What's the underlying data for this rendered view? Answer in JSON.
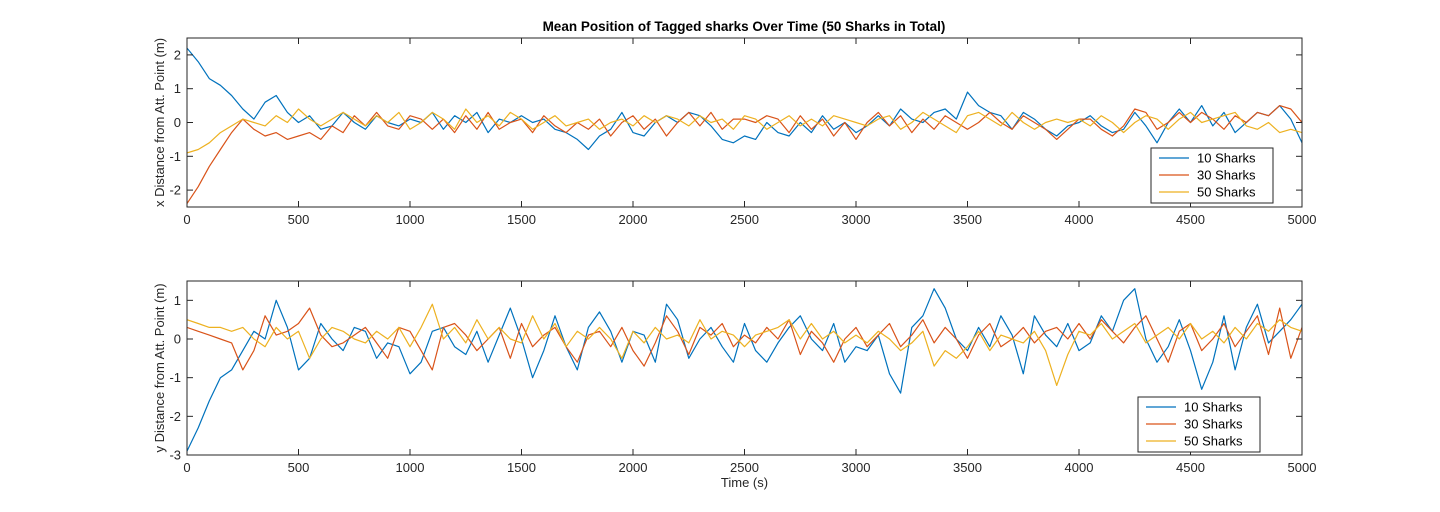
{
  "chart_data": [
    {
      "type": "line",
      "title": "Mean Position of Tagged sharks Over Time (50 Sharks in Total)",
      "xlabel": "",
      "ylabel": "x Distance from Att. Point (m)",
      "xlim": [
        0,
        5000
      ],
      "ylim": [
        -2.5,
        2.5
      ],
      "xticks": [
        0,
        500,
        1000,
        1500,
        2000,
        2500,
        3000,
        3500,
        4000,
        4500,
        5000
      ],
      "yticks": [
        -2,
        -1,
        0,
        1,
        2
      ],
      "legend_position": "lower-right",
      "grid": false,
      "x": [
        0,
        50,
        100,
        150,
        200,
        250,
        300,
        350,
        400,
        450,
        500,
        550,
        600,
        650,
        700,
        750,
        800,
        850,
        900,
        950,
        1000,
        1050,
        1100,
        1150,
        1200,
        1250,
        1300,
        1350,
        1400,
        1450,
        1500,
        1550,
        1600,
        1650,
        1700,
        1750,
        1800,
        1850,
        1900,
        1950,
        2000,
        2050,
        2100,
        2150,
        2200,
        2250,
        2300,
        2350,
        2400,
        2450,
        2500,
        2550,
        2600,
        2650,
        2700,
        2750,
        2800,
        2850,
        2900,
        2950,
        3000,
        3050,
        3100,
        3150,
        3200,
        3250,
        3300,
        3350,
        3400,
        3450,
        3500,
        3550,
        3600,
        3650,
        3700,
        3750,
        3800,
        3850,
        3900,
        3950,
        4000,
        4050,
        4100,
        4150,
        4200,
        4250,
        4300,
        4350,
        4400,
        4450,
        4500,
        4550,
        4600,
        4650,
        4700,
        4750,
        4800,
        4850,
        4900,
        4950,
        5000
      ],
      "series": [
        {
          "name": "10 Sharks",
          "color": "#0072BD",
          "values": [
            2.2,
            1.8,
            1.3,
            1.1,
            0.8,
            0.4,
            0.1,
            0.6,
            0.8,
            0.3,
            0.0,
            0.2,
            -0.2,
            -0.1,
            0.3,
            0.0,
            -0.2,
            0.2,
            0.0,
            -0.1,
            0.1,
            0.0,
            0.3,
            -0.2,
            0.2,
            0.0,
            0.3,
            -0.3,
            0.1,
            0.0,
            0.2,
            0.0,
            0.1,
            -0.2,
            -0.3,
            -0.5,
            -0.8,
            -0.4,
            -0.2,
            0.3,
            -0.3,
            -0.4,
            0.0,
            0.2,
            0.0,
            0.3,
            0.2,
            -0.1,
            -0.5,
            -0.6,
            -0.4,
            -0.5,
            0.0,
            -0.3,
            -0.4,
            0.0,
            -0.3,
            0.2,
            -0.2,
            0.0,
            -0.3,
            -0.1,
            0.2,
            -0.1,
            0.4,
            0.1,
            0.0,
            0.3,
            0.4,
            0.1,
            0.9,
            0.5,
            0.3,
            0.2,
            -0.2,
            0.3,
            0.1,
            -0.2,
            -0.4,
            -0.1,
            0.0,
            0.2,
            -0.1,
            -0.3,
            -0.2,
            0.3,
            -0.1,
            -0.6,
            0.0,
            0.4,
            0.0,
            0.5,
            -0.1,
            0.3,
            -0.3,
            0.0,
            0.3,
            0.2,
            0.5,
            0.1,
            -0.6
          ]
        },
        {
          "name": "30 Sharks",
          "color": "#D95319",
          "values": [
            -2.4,
            -1.9,
            -1.3,
            -0.8,
            -0.3,
            0.1,
            -0.2,
            -0.4,
            -0.3,
            -0.5,
            -0.4,
            -0.3,
            -0.5,
            -0.1,
            -0.3,
            0.2,
            -0.1,
            0.3,
            -0.1,
            -0.2,
            0.2,
            0.1,
            -0.2,
            0.1,
            -0.3,
            0.2,
            -0.2,
            0.3,
            -0.2,
            0.0,
            0.1,
            -0.3,
            0.2,
            -0.1,
            -0.3,
            0.0,
            -0.2,
            0.1,
            -0.4,
            0.0,
            0.2,
            -0.2,
            0.1,
            -0.4,
            0.0,
            0.3,
            -0.1,
            0.3,
            -0.2,
            0.1,
            0.1,
            0.0,
            0.2,
            0.1,
            -0.3,
            0.2,
            -0.2,
            0.1,
            -0.4,
            0.0,
            -0.5,
            0.0,
            0.3,
            -0.1,
            0.2,
            -0.3,
            0.1,
            -0.2,
            0.2,
            0.0,
            -0.2,
            0.0,
            0.3,
            0.0,
            -0.2,
            0.2,
            0.0,
            -0.2,
            -0.5,
            -0.2,
            0.1,
            0.1,
            -0.2,
            -0.4,
            -0.1,
            0.4,
            0.3,
            -0.2,
            0.0,
            0.3,
            0.0,
            0.3,
            0.1,
            -0.2,
            0.2,
            0.0,
            0.3,
            0.2,
            0.5,
            0.4,
            0.0
          ]
        },
        {
          "name": "50 Sharks",
          "color": "#EDB120",
          "values": [
            -0.9,
            -0.8,
            -0.6,
            -0.3,
            -0.1,
            0.1,
            0.0,
            -0.1,
            0.2,
            0.0,
            0.4,
            0.1,
            -0.1,
            0.1,
            0.3,
            0.1,
            -0.1,
            0.2,
            0.0,
            0.3,
            -0.2,
            0.0,
            0.3,
            0.1,
            -0.2,
            0.4,
            0.0,
            0.2,
            -0.1,
            0.3,
            0.1,
            -0.2,
            0.0,
            0.2,
            -0.1,
            0.0,
            0.1,
            -0.2,
            0.0,
            0.1,
            -0.1,
            0.2,
            0.0,
            0.2,
            0.1,
            -0.1,
            0.2,
            0.0,
            0.1,
            -0.2,
            0.2,
            0.1,
            -0.2,
            0.0,
            0.2,
            -0.1,
            0.1,
            -0.1,
            0.2,
            0.1,
            0.0,
            -0.1,
            0.1,
            0.2,
            -0.2,
            0.0,
            0.3,
            0.1,
            -0.1,
            -0.3,
            0.2,
            0.3,
            0.1,
            -0.1,
            0.3,
            0.0,
            -0.2,
            0.0,
            0.1,
            0.0,
            0.1,
            -0.1,
            0.2,
            0.0,
            -0.3,
            0.0,
            0.2,
            0.1,
            -0.2,
            0.1,
            0.3,
            0.0,
            0.1,
            0.2,
            0.3,
            -0.1,
            -0.2,
            0.0,
            -0.3,
            -0.2,
            -0.3
          ]
        }
      ]
    },
    {
      "type": "line",
      "title": "",
      "xlabel": "Time (s)",
      "ylabel": "y Distance from Att. Point (m)",
      "xlim": [
        0,
        5000
      ],
      "ylim": [
        -3,
        1.5
      ],
      "xticks": [
        0,
        500,
        1000,
        1500,
        2000,
        2500,
        3000,
        3500,
        4000,
        4500,
        5000
      ],
      "yticks": [
        -3,
        -2,
        -1,
        0,
        1
      ],
      "legend_position": "lower-right",
      "grid": false,
      "x": [
        0,
        50,
        100,
        150,
        200,
        250,
        300,
        350,
        400,
        450,
        500,
        550,
        600,
        650,
        700,
        750,
        800,
        850,
        900,
        950,
        1000,
        1050,
        1100,
        1150,
        1200,
        1250,
        1300,
        1350,
        1400,
        1450,
        1500,
        1550,
        1600,
        1650,
        1700,
        1750,
        1800,
        1850,
        1900,
        1950,
        2000,
        2050,
        2100,
        2150,
        2200,
        2250,
        2300,
        2350,
        2400,
        2450,
        2500,
        2550,
        2600,
        2650,
        2700,
        2750,
        2800,
        2850,
        2900,
        2950,
        3000,
        3050,
        3100,
        3150,
        3200,
        3250,
        3300,
        3350,
        3400,
        3450,
        3500,
        3550,
        3600,
        3650,
        3700,
        3750,
        3800,
        3850,
        3900,
        3950,
        4000,
        4050,
        4100,
        4150,
        4200,
        4250,
        4300,
        4350,
        4400,
        4450,
        4500,
        4550,
        4600,
        4650,
        4700,
        4750,
        4800,
        4850,
        4900,
        4950,
        5000
      ],
      "series": [
        {
          "name": "10 Sharks",
          "color": "#0072BD",
          "values": [
            -2.9,
            -2.3,
            -1.6,
            -1.0,
            -0.8,
            -0.3,
            0.2,
            0.0,
            1.0,
            0.3,
            -0.8,
            -0.5,
            0.4,
            0.0,
            -0.3,
            0.3,
            0.2,
            -0.5,
            -0.1,
            -0.2,
            -0.9,
            -0.6,
            0.2,
            0.3,
            -0.2,
            -0.4,
            0.2,
            -0.6,
            0.1,
            0.8,
            0.0,
            -1.0,
            -0.3,
            0.6,
            -0.2,
            -0.8,
            0.3,
            0.7,
            0.2,
            -0.6,
            0.2,
            0.1,
            -0.6,
            0.9,
            0.5,
            -0.5,
            0.0,
            0.3,
            -0.2,
            -0.6,
            0.4,
            -0.3,
            -0.6,
            -0.1,
            0.3,
            0.6,
            0.0,
            -0.3,
            0.4,
            -0.6,
            -0.2,
            -0.3,
            0.1,
            -0.9,
            -1.4,
            0.3,
            0.6,
            1.3,
            0.8,
            0.0,
            -0.3,
            0.3,
            -0.2,
            0.6,
            0.1,
            -0.9,
            0.6,
            0.1,
            -0.2,
            0.4,
            -0.3,
            -0.1,
            0.6,
            0.2,
            1.0,
            1.3,
            0.0,
            -0.6,
            -0.2,
            0.5,
            -0.3,
            -1.3,
            -0.6,
            0.6,
            -0.8,
            0.3,
            0.9,
            -0.1,
            0.2,
            0.5,
            0.9
          ]
        },
        {
          "name": "30 Sharks",
          "color": "#D95319",
          "values": [
            0.3,
            0.2,
            0.1,
            0.0,
            -0.1,
            -0.8,
            -0.3,
            0.6,
            0.1,
            0.2,
            0.4,
            0.8,
            0.1,
            -0.2,
            -0.1,
            0.1,
            0.3,
            -0.1,
            -0.5,
            0.3,
            0.2,
            -0.3,
            -0.8,
            0.3,
            0.4,
            0.1,
            -0.3,
            0.0,
            0.3,
            -0.5,
            0.4,
            -0.2,
            0.1,
            0.3,
            -0.2,
            -0.6,
            0.1,
            0.2,
            -0.2,
            0.3,
            -0.3,
            -0.7,
            -0.1,
            0.6,
            0.2,
            -0.4,
            0.3,
            0.1,
            0.4,
            -0.2,
            0.1,
            -0.1,
            0.3,
            0.0,
            0.5,
            -0.4,
            0.2,
            -0.1,
            -0.6,
            0.0,
            0.3,
            -0.2,
            0.1,
            0.4,
            -0.2,
            0.1,
            0.5,
            -0.1,
            0.3,
            0.0,
            -0.5,
            0.1,
            0.4,
            -0.2,
            0.0,
            0.3,
            -0.1,
            0.2,
            0.3,
            0.0,
            0.4,
            0.0,
            0.5,
            0.2,
            -0.1,
            0.3,
            0.6,
            0.0,
            -0.6,
            0.2,
            0.4,
            -0.3,
            0.0,
            0.4,
            -0.2,
            0.2,
            0.6,
            -0.4,
            0.8,
            -0.5,
            0.3
          ]
        },
        {
          "name": "50 Sharks",
          "color": "#EDB120",
          "values": [
            0.5,
            0.4,
            0.3,
            0.3,
            0.2,
            0.3,
            0.0,
            -0.2,
            0.3,
            0.0,
            0.2,
            -0.5,
            0.0,
            0.3,
            0.2,
            0.0,
            -0.1,
            0.2,
            0.0,
            0.3,
            -0.2,
            0.3,
            0.9,
            0.0,
            0.3,
            -0.1,
            0.5,
            0.0,
            0.3,
            0.0,
            -0.1,
            0.6,
            0.0,
            0.4,
            -0.2,
            0.2,
            0.0,
            0.3,
            0.0,
            -0.5,
            0.2,
            -0.1,
            0.3,
            0.0,
            0.1,
            -0.1,
            0.5,
            0.0,
            0.2,
            0.1,
            -0.2,
            0.1,
            0.2,
            0.3,
            0.5,
            0.0,
            0.4,
            0.0,
            0.2,
            -0.1,
            0.1,
            -0.1,
            0.2,
            0.0,
            -0.3,
            -0.1,
            0.2,
            -0.7,
            -0.3,
            -0.5,
            -0.2,
            0.2,
            -0.3,
            0.1,
            0.0,
            -0.1,
            0.2,
            -0.3,
            -1.2,
            -0.4,
            0.2,
            0.1,
            0.4,
            0.0,
            0.2,
            0.4,
            -0.1,
            0.1,
            0.3,
            0.0,
            0.4,
            0.0,
            0.2,
            -0.1,
            0.3,
            0.0,
            0.4,
            0.2,
            0.5,
            0.3,
            0.2
          ]
        }
      ]
    }
  ]
}
